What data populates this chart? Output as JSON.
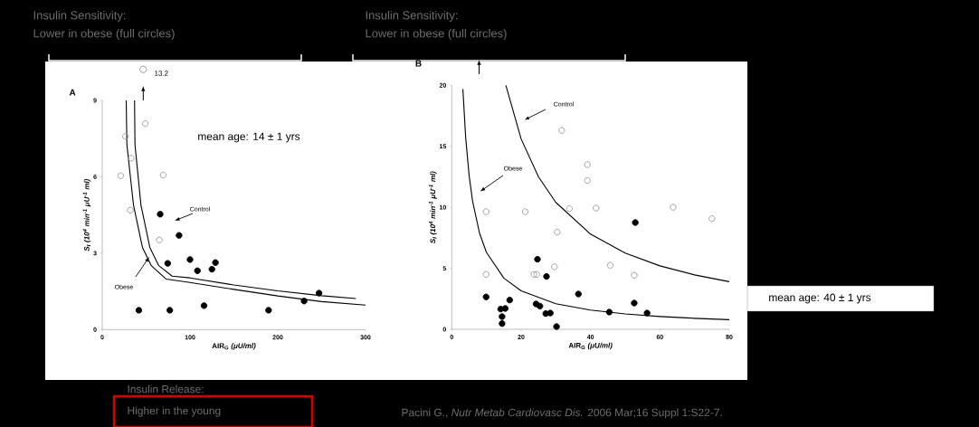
{
  "chart_data": [
    {
      "type": "scatter",
      "title": "A",
      "xlabel": "AIR$_{G}$ *(μU/ml)*",
      "ylabel": "S$_{I}$ (10$^{4}$ min$^{-1}$ μU$^{-1}$ ml)",
      "xlim": [
        0,
        300
      ],
      "ylim": [
        0,
        9
      ],
      "xticks": [
        0,
        100,
        200,
        300
      ],
      "yticks": [
        0,
        3,
        6,
        9
      ],
      "annotations": [
        "Insulin Sensitivity:",
        "Lower in obese (full circles)",
        "13.2",
        "mean age: 14 ± 1 yrs",
        "Insulin Release:",
        "Higher in the young",
        "Control",
        "Obese"
      ],
      "series": [
        {
          "color": "#999999",
          "x": [
            21,
            26.4,
            33,
            32,
            49,
            69.5,
            65
          ],
          "values": [
            6.04,
            7.59,
            6.73,
            4.69,
            8.09,
            6.07,
            3.52
          ]
        },
        {
          "color": "#000000",
          "x": [
            66,
            87.5,
            74.6,
            100,
            108.5,
            125,
            129,
            41.7,
            77,
            116,
            189.5,
            230,
            247
          ],
          "values": [
            4.53,
            3.7,
            2.6,
            2.75,
            2.31,
            2.37,
            2.63,
            0.76,
            0.76,
            0.94,
            0.76,
            1.12,
            1.43
          ]
        },
        {
          "type": "line",
          "color": "#000000",
          "x": [
            27.3,
            28.1,
            35.6,
            45.8,
            55.9,
            72.9,
            100,
            150,
            200,
            250,
            300
          ],
          "values": [
            9.0,
            7.26,
            4.89,
            3.23,
            2.51,
            1.98,
            1.85,
            1.58,
            1.32,
            1.1,
            0.96
          ]
        },
        {
          "type": "line",
          "color": "#000000",
          "x": [
            36.8,
            37.3,
            44.1,
            54.2,
            64.4,
            79.7,
            100,
            150,
            200,
            250,
            289
          ],
          "values": [
            9.0,
            7.26,
            4.89,
            3.23,
            2.51,
            2.1,
            2.03,
            1.75,
            1.52,
            1.33,
            1.22
          ]
        }
      ]
    },
    {
      "type": "scatter",
      "title": "B",
      "xlabel": "AIR$_{G}$ *(μU/ml)*",
      "ylabel": "S$_{I}$ (10$^{4}$ min$^{-1}$ μU$^{-1}$ ml)",
      "xlim": [
        0,
        80
      ],
      "ylim": [
        0,
        20
      ],
      "xticks": [
        0,
        20,
        40,
        60,
        80
      ],
      "yticks": [
        0,
        5,
        10,
        15,
        20
      ],
      "annotations": [
        "Insulin Sensitivity:",
        "Lower in obese (full circles)",
        "mean age: 40 ± 1 yrs",
        "Pacini G., *Nutr Metab Cardiovasc Dis.* 2006 Mar;16 Suppl 1:S22-7.",
        "Control",
        "Obese"
      ],
      "series": [
        {
          "color": "#999999",
          "x": [
            9.9,
            9.9,
            21.2,
            30.4,
            29.6,
            23.7,
            24.5,
            31.7,
            39.1,
            39.1,
            33.9,
            41.6,
            45.7,
            52.6,
            63.8,
            75
          ],
          "values": [
            9.64,
            4.5,
            9.64,
            7.96,
            5.12,
            4.5,
            4.5,
            16.3,
            13.5,
            12.2,
            9.89,
            9.94,
            5.24,
            4.43,
            10.0,
            9.07
          ]
        },
        {
          "color": "#000000",
          "x": [
            9.9,
            14.1,
            14.5,
            14.5,
            15.4,
            16.7,
            24.7,
            24.3,
            25.4,
            27.3,
            27.1,
            28.4,
            30.2,
            36.5,
            45.4,
            52.6,
            52.9,
            56.3
          ],
          "values": [
            2.65,
            1.66,
            1.04,
            0.47,
            1.71,
            2.4,
            5.74,
            2.08,
            1.9,
            4.33,
            1.29,
            1.33,
            0.22,
            2.89,
            1.41,
            2.15,
            8.75,
            1.33
          ]
        },
        {
          "type": "line",
          "color": "#000000",
          "x": [
            3.2,
            4,
            5,
            6,
            8,
            10,
            15,
            20,
            30,
            40,
            50,
            60,
            70,
            80
          ],
          "values": [
            19.7,
            15.75,
            12.6,
            10.5,
            7.88,
            6.3,
            4.2,
            3.15,
            2.1,
            1.58,
            1.26,
            1.05,
            0.9,
            0.79
          ]
        },
        {
          "type": "line",
          "color": "#000000",
          "x": [
            15.6,
            20,
            25,
            30,
            40,
            50,
            60,
            70,
            80
          ],
          "values": [
            20,
            15.6,
            12.5,
            10.4,
            7.8,
            6.24,
            5.2,
            4.46,
            3.9
          ]
        }
      ]
    }
  ]
}
